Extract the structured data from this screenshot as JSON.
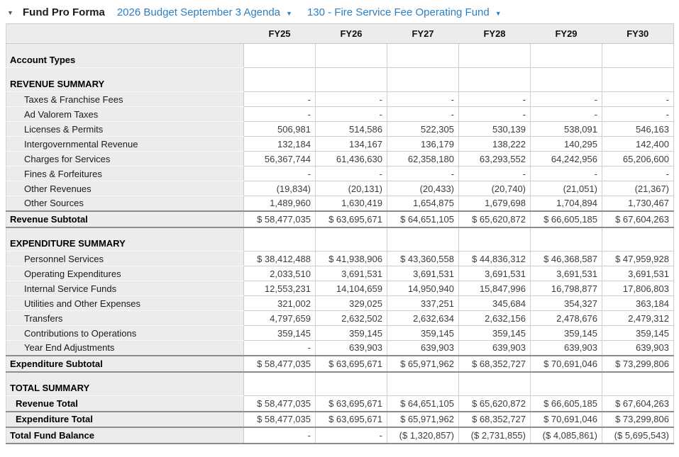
{
  "topbar": {
    "title": "Fund Pro Forma",
    "budget_dropdown_label": "2026 Budget September 3 Agenda",
    "fund_dropdown_label": "130 - Fire Service Fee Operating Fund"
  },
  "icons": {
    "collapse_caret": "▼",
    "dropdown_caret": "▼"
  },
  "colors": {
    "link_blue": "#2E7FC1",
    "panel_grey": "#ECECEC",
    "grid_border": "#C9C9C9",
    "grid_border_dark": "#8C8C8C"
  },
  "table": {
    "corner_label": "",
    "columns": [
      "FY25",
      "FY26",
      "FY27",
      "FY28",
      "FY29",
      "FY30"
    ],
    "rows": [
      {
        "label": "Account Types",
        "type": "section",
        "values": [
          "",
          "",
          "",
          "",
          "",
          ""
        ]
      },
      {
        "label": "REVENUE SUMMARY",
        "type": "section",
        "values": [
          "",
          "",
          "",
          "",
          "",
          ""
        ]
      },
      {
        "label": "Taxes & Franchise Fees",
        "type": "detail",
        "values": [
          "-",
          "-",
          "-",
          "-",
          "-",
          "-"
        ]
      },
      {
        "label": "Ad Valorem Taxes",
        "type": "detail",
        "values": [
          "-",
          "-",
          "-",
          "-",
          "-",
          "-"
        ]
      },
      {
        "label": "Licenses & Permits",
        "type": "detail",
        "values": [
          "506,981",
          "514,586",
          "522,305",
          "530,139",
          "538,091",
          "546,163"
        ]
      },
      {
        "label": "Intergovernmental Revenue",
        "type": "detail",
        "values": [
          "132,184",
          "134,167",
          "136,179",
          "138,222",
          "140,295",
          "142,400"
        ]
      },
      {
        "label": "Charges for Services",
        "type": "detail",
        "values": [
          "56,367,744",
          "61,436,630",
          "62,358,180",
          "63,293,552",
          "64,242,956",
          "65,206,600"
        ]
      },
      {
        "label": "Fines & Forfeitures",
        "type": "detail",
        "values": [
          "-",
          "-",
          "-",
          "-",
          "-",
          "-"
        ]
      },
      {
        "label": "Other Revenues",
        "type": "detail",
        "values": [
          "(19,834)",
          "(20,131)",
          "(20,433)",
          "(20,740)",
          "(21,051)",
          "(21,367)"
        ]
      },
      {
        "label": "Other Sources",
        "type": "detail",
        "values": [
          "1,489,960",
          "1,630,419",
          "1,654,875",
          "1,679,698",
          "1,704,894",
          "1,730,467"
        ]
      },
      {
        "label": "Revenue Subtotal",
        "type": "subtotal",
        "values": [
          "$ 58,477,035",
          "$ 63,695,671",
          "$ 64,651,105",
          "$ 65,620,872",
          "$ 66,605,185",
          "$ 67,604,263"
        ]
      },
      {
        "label": "EXPENDITURE SUMMARY",
        "type": "section",
        "values": [
          "",
          "",
          "",
          "",
          "",
          ""
        ]
      },
      {
        "label": "Personnel Services",
        "type": "detail",
        "values": [
          "$ 38,412,488",
          "$ 41,938,906",
          "$ 43,360,558",
          "$ 44,836,312",
          "$ 46,368,587",
          "$ 47,959,928"
        ]
      },
      {
        "label": "Operating Expenditures",
        "type": "detail",
        "values": [
          "2,033,510",
          "3,691,531",
          "3,691,531",
          "3,691,531",
          "3,691,531",
          "3,691,531"
        ]
      },
      {
        "label": "Internal Service Funds",
        "type": "detail",
        "values": [
          "12,553,231",
          "14,104,659",
          "14,950,940",
          "15,847,996",
          "16,798,877",
          "17,806,803"
        ]
      },
      {
        "label": "Utilities and Other Expenses",
        "type": "detail",
        "values": [
          "321,002",
          "329,025",
          "337,251",
          "345,684",
          "354,327",
          "363,184"
        ]
      },
      {
        "label": "Transfers",
        "type": "detail",
        "values": [
          "4,797,659",
          "2,632,502",
          "2,632,634",
          "2,632,156",
          "2,478,676",
          "2,479,312"
        ]
      },
      {
        "label": "Contributions to Operations",
        "type": "detail",
        "values": [
          "359,145",
          "359,145",
          "359,145",
          "359,145",
          "359,145",
          "359,145"
        ]
      },
      {
        "label": "Year End Adjustments",
        "type": "detail",
        "values": [
          "-",
          "639,903",
          "639,903",
          "639,903",
          "639,903",
          "639,903"
        ]
      },
      {
        "label": "Expenditure Subtotal",
        "type": "subtotal",
        "values": [
          "$ 58,477,035",
          "$ 63,695,671",
          "$ 65,971,962",
          "$ 68,352,727",
          "$ 70,691,046",
          "$ 73,299,806"
        ]
      },
      {
        "label": "TOTAL SUMMARY",
        "type": "section",
        "values": [
          "",
          "",
          "",
          "",
          "",
          ""
        ]
      },
      {
        "label": "Revenue Total",
        "type": "total",
        "values": [
          "$ 58,477,035",
          "$ 63,695,671",
          "$ 64,651,105",
          "$ 65,620,872",
          "$ 66,605,185",
          "$ 67,604,263"
        ]
      },
      {
        "label": "Expenditure Total",
        "type": "total",
        "values": [
          "$ 58,477,035",
          "$ 63,695,671",
          "$ 65,971,962",
          "$ 68,352,727",
          "$ 70,691,046",
          "$ 73,299,806"
        ]
      },
      {
        "label": "Total Fund Balance",
        "type": "grandtotal",
        "values": [
          "-",
          "-",
          "($ 1,320,857)",
          "($ 2,731,855)",
          "($ 4,085,861)",
          "($ 5,695,543)"
        ]
      }
    ]
  }
}
